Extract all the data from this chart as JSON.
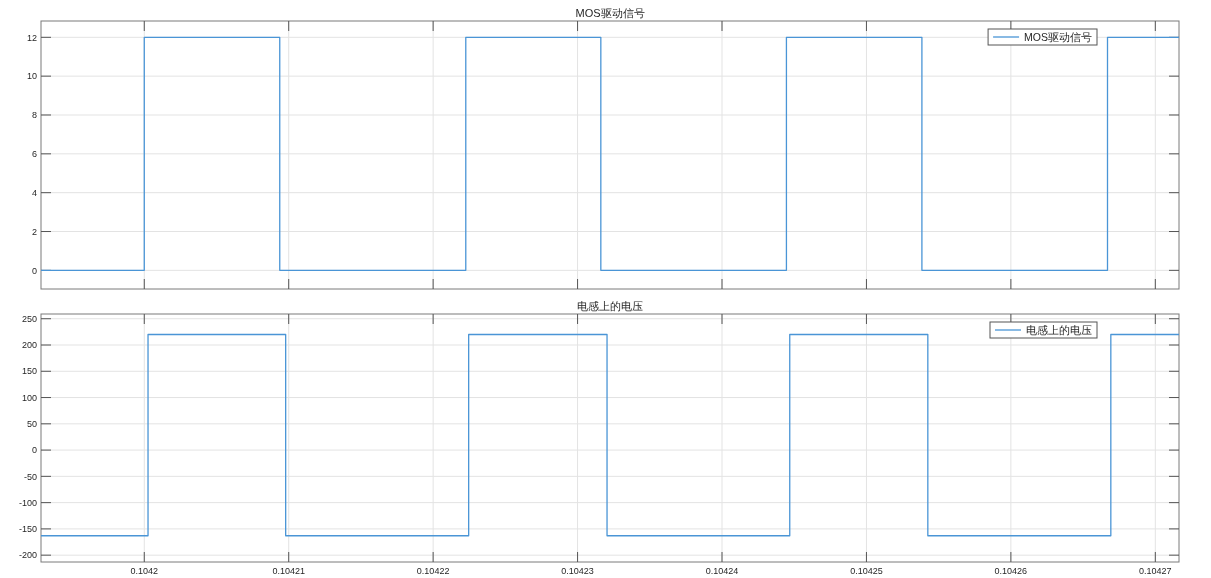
{
  "chart_data": [
    {
      "type": "step",
      "title": "MOS驱动信号",
      "x": [
        0.10419285,
        0.1042,
        0.10420938,
        0.10422226,
        0.10423161,
        0.10424446,
        0.10425384,
        0.10426669,
        0.10427164
      ],
      "series": [
        {
          "name": "MOS驱动信号",
          "color": "#4a95d6",
          "values": [
            0,
            12,
            0,
            12,
            0,
            12,
            0,
            12,
            12
          ]
        }
      ],
      "xlim": [
        0.10419285,
        0.10427164
      ],
      "xticks": [
        0.1042,
        0.10421,
        0.10422,
        0.10423,
        0.10424,
        0.10425,
        0.10426,
        0.10427
      ],
      "ylim": [
        -0.96,
        12.84
      ],
      "yticks": [
        0,
        2,
        4,
        6,
        8,
        10,
        12
      ],
      "grid": true,
      "legend": "top right",
      "tick_labels": "y"
    },
    {
      "type": "step",
      "title": "电感上的电压",
      "x": [
        0.10419285,
        0.10420026,
        0.10420979,
        0.10422246,
        0.10423204,
        0.10424469,
        0.10425425,
        0.10426692,
        0.10427164
      ],
      "series": [
        {
          "name": "电感上的电压",
          "color": "#4a95d6",
          "values": [
            -163,
            220,
            -163,
            220,
            -163,
            220,
            -163,
            220,
            220
          ]
        }
      ],
      "xlim": [
        0.10419285,
        0.10427164
      ],
      "xticks": [
        0.1042,
        0.10421,
        0.10422,
        0.10423,
        0.10424,
        0.10425,
        0.10426,
        0.10427
      ],
      "ylim": [
        -213,
        259
      ],
      "yticks": [
        -200,
        -150,
        -100,
        -50,
        0,
        50,
        100,
        150,
        200,
        250
      ],
      "grid": true,
      "legend": "top right"
    }
  ]
}
